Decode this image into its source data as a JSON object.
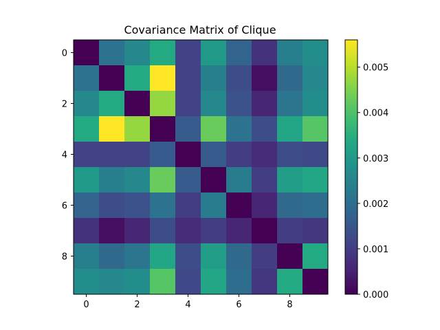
{
  "chart_data": {
    "type": "heatmap",
    "title": "Covariance Matrix of Clique",
    "colormap": "viridis",
    "x_ticks": [
      "0",
      "2",
      "4",
      "6",
      "8"
    ],
    "y_ticks": [
      "0",
      "2",
      "4",
      "6",
      "8"
    ],
    "colorbar": {
      "min": 0.0,
      "max": 0.0056,
      "ticks": [
        "0.000",
        "0.001",
        "0.002",
        "0.003",
        "0.004",
        "0.005"
      ]
    },
    "matrix": [
      [
        0.0,
        0.0021,
        0.0026,
        0.0034,
        0.0011,
        0.003,
        0.0018,
        0.0008,
        0.0024,
        0.0027
      ],
      [
        0.0021,
        0.0,
        0.0034,
        0.0056,
        0.0011,
        0.0024,
        0.0013,
        0.0002,
        0.0019,
        0.0026
      ],
      [
        0.0026,
        0.0034,
        0.0,
        0.0047,
        0.0011,
        0.0026,
        0.0014,
        0.0006,
        0.0022,
        0.0027
      ],
      [
        0.0034,
        0.0056,
        0.0047,
        0.0,
        0.0016,
        0.0043,
        0.0021,
        0.0013,
        0.0033,
        0.0041
      ],
      [
        0.0011,
        0.0011,
        0.0011,
        0.0016,
        0.0,
        0.0016,
        0.001,
        0.0007,
        0.0013,
        0.0012
      ],
      [
        0.003,
        0.0024,
        0.0026,
        0.0043,
        0.0016,
        0.0,
        0.0023,
        0.001,
        0.0031,
        0.0033
      ],
      [
        0.0018,
        0.0013,
        0.0014,
        0.0021,
        0.001,
        0.0023,
        0.0,
        0.0006,
        0.0019,
        0.002
      ],
      [
        0.0008,
        0.0002,
        0.0006,
        0.0013,
        0.0007,
        0.001,
        0.0006,
        0.0,
        0.001,
        0.0009
      ],
      [
        0.0024,
        0.0019,
        0.0022,
        0.0033,
        0.0013,
        0.0031,
        0.0019,
        0.001,
        0.0,
        0.0034
      ],
      [
        0.0027,
        0.0026,
        0.0027,
        0.0041,
        0.0012,
        0.0033,
        0.002,
        0.0009,
        0.0034,
        0.0
      ]
    ]
  }
}
